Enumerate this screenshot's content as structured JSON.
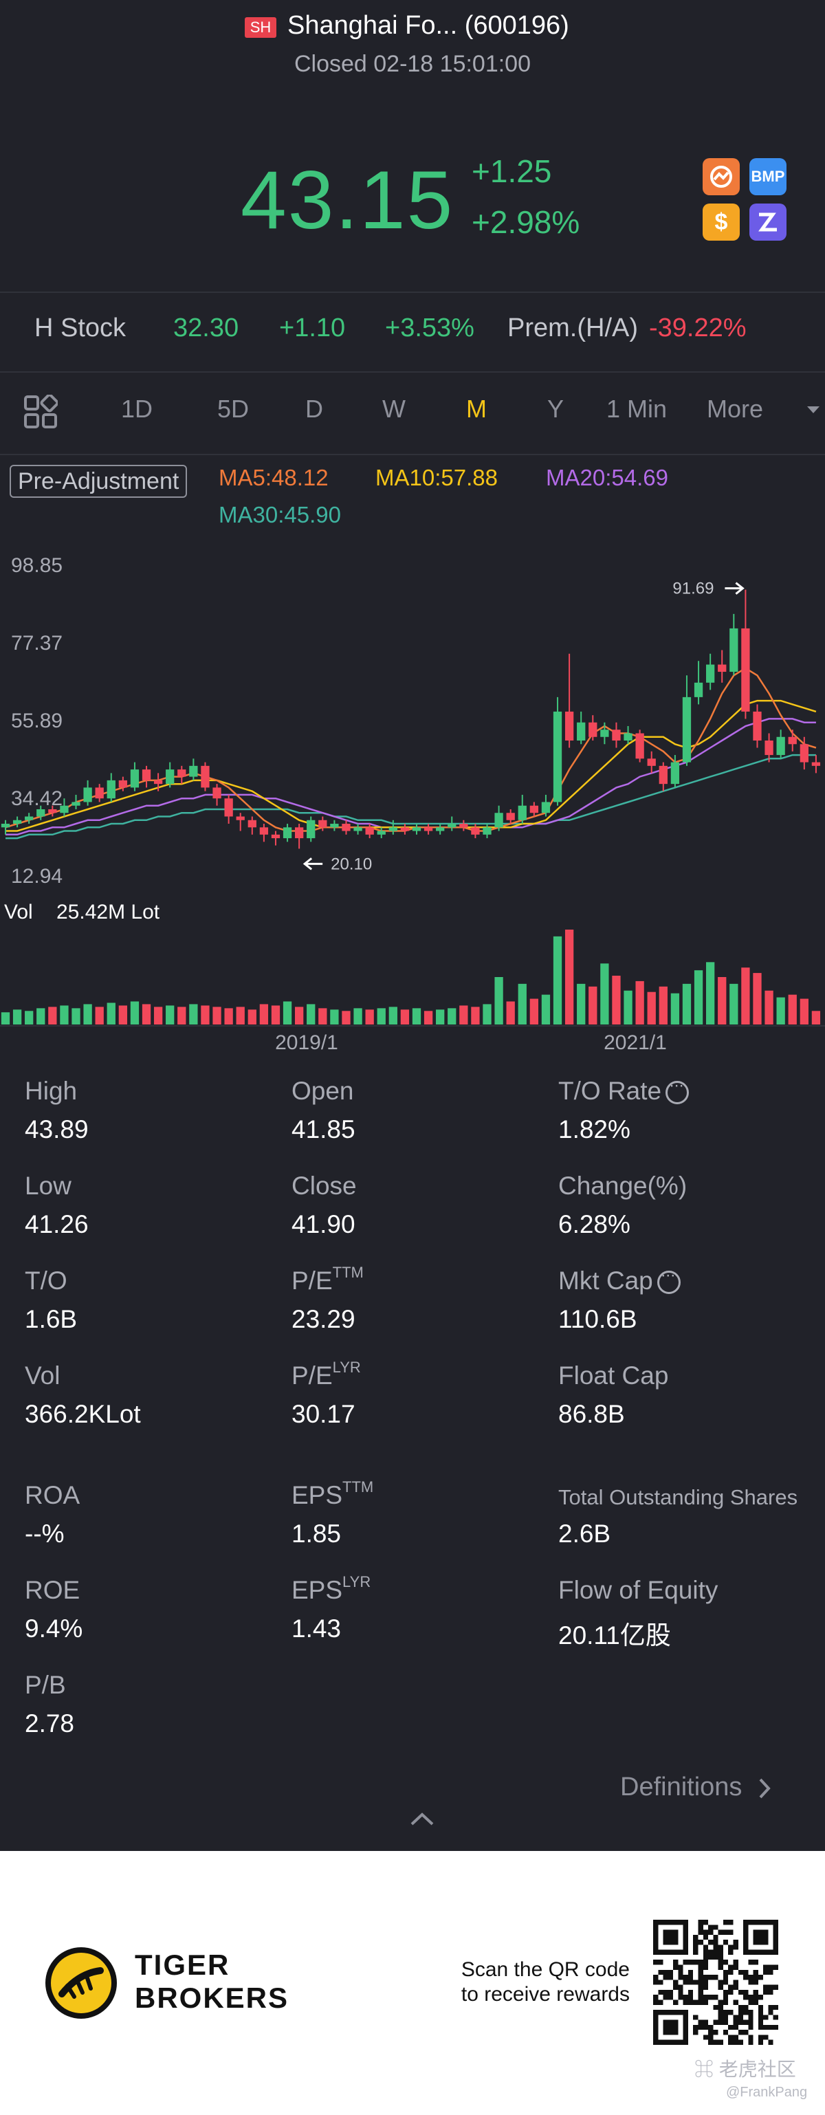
{
  "header": {
    "market_badge": "SH",
    "stock_name": "Shanghai Fo... (600196)",
    "status": "Closed 02-18 15:01:00",
    "price": "43.15",
    "change": "+1.25",
    "change_pct": "+2.98%",
    "app_icons": [
      "a-share-icon",
      "bmp-icon",
      "dollar-icon",
      "zz-icon"
    ],
    "bmp_label": "BMP",
    "dollar_label": "$"
  },
  "h_stock": {
    "label": "H Stock",
    "price": "32.30",
    "change": "+1.10",
    "change_pct": "+3.53%",
    "prem_label": "Prem.(H/A)",
    "prem_value": "-39.22%"
  },
  "tabs": {
    "items": [
      "1D",
      "5D",
      "D",
      "W",
      "M",
      "Y",
      "1 Min",
      "More"
    ],
    "active": "M"
  },
  "indicators": {
    "adjustment": "Pre-Adjustment",
    "ma5": "MA5:48.12",
    "ma10": "MA10:57.88",
    "ma20": "MA20:54.69",
    "ma30": "MA30:45.90"
  },
  "colors": {
    "up": "#3fc47c",
    "down": "#f2485a",
    "ma5": "#f07a3a",
    "ma10": "#f5c518",
    "ma20": "#b46be8",
    "ma30": "#3fb3a0",
    "active_tab": "#f5c518"
  },
  "chart_data": {
    "type": "candlestick",
    "y_ticks": [
      "98.85",
      "77.37",
      "55.89",
      "34.42",
      "12.94"
    ],
    "x_ticks": [
      "2019/1",
      "2021/1"
    ],
    "max_label": "91.69",
    "min_label": "20.10",
    "volume_label": "Vol",
    "volume_value": "25.42M Lot",
    "ylim": [
      12.94,
      98.85
    ],
    "candles": [
      {
        "o": 26,
        "c": 27,
        "h": 28,
        "l": 24
      },
      {
        "o": 27,
        "c": 28,
        "h": 29,
        "l": 26
      },
      {
        "o": 28,
        "c": 29,
        "h": 30,
        "l": 27
      },
      {
        "o": 29,
        "c": 31,
        "h": 32,
        "l": 28
      },
      {
        "o": 31,
        "c": 30,
        "h": 32,
        "l": 29
      },
      {
        "o": 30,
        "c": 32,
        "h": 34,
        "l": 29
      },
      {
        "o": 32,
        "c": 33,
        "h": 35,
        "l": 31
      },
      {
        "o": 33,
        "c": 37,
        "h": 39,
        "l": 32
      },
      {
        "o": 37,
        "c": 34,
        "h": 38,
        "l": 33
      },
      {
        "o": 34,
        "c": 39,
        "h": 41,
        "l": 33
      },
      {
        "o": 39,
        "c": 37,
        "h": 40,
        "l": 36
      },
      {
        "o": 37,
        "c": 42,
        "h": 44,
        "l": 36
      },
      {
        "o": 42,
        "c": 39,
        "h": 43,
        "l": 37
      },
      {
        "o": 39,
        "c": 38,
        "h": 41,
        "l": 36
      },
      {
        "o": 38,
        "c": 42,
        "h": 44,
        "l": 37
      },
      {
        "o": 42,
        "c": 40,
        "h": 43,
        "l": 38
      },
      {
        "o": 40,
        "c": 43,
        "h": 45,
        "l": 39
      },
      {
        "o": 43,
        "c": 37,
        "h": 44,
        "l": 36
      },
      {
        "o": 37,
        "c": 34,
        "h": 38,
        "l": 32
      },
      {
        "o": 34,
        "c": 29,
        "h": 35,
        "l": 27
      },
      {
        "o": 29,
        "c": 28,
        "h": 30,
        "l": 25
      },
      {
        "o": 28,
        "c": 26,
        "h": 29,
        "l": 24
      },
      {
        "o": 26,
        "c": 24,
        "h": 27,
        "l": 22
      },
      {
        "o": 24,
        "c": 23,
        "h": 25,
        "l": 21
      },
      {
        "o": 23,
        "c": 26,
        "h": 27,
        "l": 22
      },
      {
        "o": 26,
        "c": 23,
        "h": 27,
        "l": 20.1
      },
      {
        "o": 23,
        "c": 28,
        "h": 29,
        "l": 22
      },
      {
        "o": 28,
        "c": 26,
        "h": 29,
        "l": 25
      },
      {
        "o": 26,
        "c": 27,
        "h": 28,
        "l": 25
      },
      {
        "o": 27,
        "c": 25,
        "h": 28,
        "l": 24
      },
      {
        "o": 25,
        "c": 26,
        "h": 27,
        "l": 24
      },
      {
        "o": 26,
        "c": 24,
        "h": 27,
        "l": 23
      },
      {
        "o": 24,
        "c": 25,
        "h": 26,
        "l": 23
      },
      {
        "o": 25,
        "c": 26,
        "h": 28,
        "l": 24
      },
      {
        "o": 26,
        "c": 25,
        "h": 27,
        "l": 24
      },
      {
        "o": 25,
        "c": 26,
        "h": 27,
        "l": 24
      },
      {
        "o": 26,
        "c": 25,
        "h": 27,
        "l": 24
      },
      {
        "o": 25,
        "c": 26,
        "h": 27,
        "l": 24
      },
      {
        "o": 26,
        "c": 27,
        "h": 29,
        "l": 25
      },
      {
        "o": 27,
        "c": 26,
        "h": 28,
        "l": 25
      },
      {
        "o": 26,
        "c": 24,
        "h": 27,
        "l": 23
      },
      {
        "o": 24,
        "c": 26,
        "h": 27,
        "l": 23
      },
      {
        "o": 26,
        "c": 30,
        "h": 32,
        "l": 25
      },
      {
        "o": 30,
        "c": 28,
        "h": 31,
        "l": 27
      },
      {
        "o": 28,
        "c": 32,
        "h": 35,
        "l": 27
      },
      {
        "o": 32,
        "c": 30,
        "h": 33,
        "l": 29
      },
      {
        "o": 30,
        "c": 33,
        "h": 35,
        "l": 29
      },
      {
        "o": 33,
        "c": 58,
        "h": 62,
        "l": 32
      },
      {
        "o": 58,
        "c": 50,
        "h": 74,
        "l": 48
      },
      {
        "o": 50,
        "c": 55,
        "h": 58,
        "l": 49
      },
      {
        "o": 55,
        "c": 51,
        "h": 57,
        "l": 50
      },
      {
        "o": 51,
        "c": 53,
        "h": 55,
        "l": 49
      },
      {
        "o": 53,
        "c": 50,
        "h": 55,
        "l": 48
      },
      {
        "o": 50,
        "c": 52,
        "h": 54,
        "l": 49
      },
      {
        "o": 52,
        "c": 45,
        "h": 53,
        "l": 44
      },
      {
        "o": 45,
        "c": 43,
        "h": 47,
        "l": 41
      },
      {
        "o": 43,
        "c": 38,
        "h": 44,
        "l": 36
      },
      {
        "o": 38,
        "c": 44,
        "h": 46,
        "l": 37
      },
      {
        "o": 44,
        "c": 62,
        "h": 68,
        "l": 43
      },
      {
        "o": 62,
        "c": 66,
        "h": 72,
        "l": 60
      },
      {
        "o": 66,
        "c": 71,
        "h": 74,
        "l": 64
      },
      {
        "o": 71,
        "c": 69,
        "h": 75,
        "l": 66
      },
      {
        "o": 69,
        "c": 81,
        "h": 85,
        "l": 68
      },
      {
        "o": 81,
        "c": 58,
        "h": 91.69,
        "l": 56
      },
      {
        "o": 58,
        "c": 50,
        "h": 60,
        "l": 48
      },
      {
        "o": 50,
        "c": 46,
        "h": 52,
        "l": 44
      },
      {
        "o": 46,
        "c": 51,
        "h": 53,
        "l": 45
      },
      {
        "o": 51,
        "c": 49,
        "h": 53,
        "l": 47
      },
      {
        "o": 49,
        "c": 44,
        "h": 51,
        "l": 42
      },
      {
        "o": 44,
        "c": 43,
        "h": 46,
        "l": 41
      }
    ],
    "ma5": [
      26,
      27,
      28,
      29,
      30,
      31,
      33,
      34,
      35,
      36,
      37,
      38,
      39,
      39,
      40,
      40,
      41,
      40,
      39,
      37,
      34,
      31,
      28,
      26,
      25,
      25,
      25,
      26,
      26,
      26,
      26,
      26,
      25,
      25,
      25,
      26,
      26,
      26,
      26,
      26,
      25,
      25,
      26,
      27,
      28,
      29,
      30,
      36,
      42,
      47,
      52,
      54,
      52,
      52,
      51,
      49,
      47,
      44,
      45,
      50,
      56,
      63,
      68,
      70,
      68,
      63,
      57,
      52,
      49,
      48
    ],
    "ma10": [
      25,
      25,
      26,
      27,
      28,
      29,
      30,
      31,
      32,
      33,
      34,
      35,
      36,
      37,
      38,
      38,
      39,
      39,
      39,
      38,
      37,
      36,
      34,
      32,
      30,
      28,
      27,
      26,
      26,
      26,
      26,
      26,
      26,
      26,
      26,
      26,
      26,
      26,
      26,
      26,
      26,
      26,
      26,
      26,
      27,
      27,
      28,
      31,
      34,
      37,
      40,
      43,
      46,
      49,
      51,
      51,
      51,
      49,
      48,
      49,
      51,
      54,
      57,
      60,
      61,
      61,
      61,
      60,
      59,
      58
    ],
    "ma20": [
      24,
      24,
      25,
      25,
      26,
      26,
      27,
      28,
      28,
      29,
      30,
      31,
      32,
      32,
      33,
      34,
      34,
      35,
      35,
      35,
      35,
      35,
      34,
      34,
      33,
      32,
      31,
      30,
      29,
      28,
      27,
      27,
      26,
      26,
      26,
      26,
      26,
      26,
      26,
      26,
      26,
      26,
      26,
      26,
      26,
      27,
      27,
      28,
      29,
      31,
      33,
      35,
      37,
      38,
      40,
      41,
      42,
      43,
      44,
      46,
      48,
      50,
      52,
      54,
      55,
      56,
      56,
      56,
      55,
      55
    ],
    "ma30": [
      23,
      23,
      24,
      24,
      24,
      25,
      25,
      26,
      26,
      27,
      27,
      28,
      28,
      29,
      29,
      30,
      30,
      31,
      31,
      31,
      31,
      31,
      31,
      31,
      31,
      30,
      30,
      30,
      29,
      29,
      28,
      28,
      28,
      27,
      27,
      27,
      27,
      27,
      27,
      27,
      27,
      27,
      27,
      27,
      27,
      27,
      27,
      28,
      28,
      29,
      30,
      31,
      32,
      33,
      34,
      35,
      36,
      37,
      38,
      39,
      40,
      41,
      42,
      43,
      44,
      45,
      45,
      46,
      46,
      46
    ],
    "volume": [
      18,
      22,
      20,
      24,
      26,
      28,
      24,
      30,
      26,
      32,
      28,
      34,
      30,
      26,
      28,
      26,
      30,
      28,
      26,
      24,
      26,
      22,
      30,
      28,
      34,
      26,
      30,
      24,
      22,
      20,
      24,
      22,
      24,
      26,
      22,
      24,
      20,
      22,
      24,
      28,
      26,
      30,
      70,
      34,
      60,
      38,
      44,
      130,
      140,
      60,
      56,
      90,
      72,
      50,
      64,
      48,
      56,
      46,
      60,
      80,
      92,
      70,
      60,
      84,
      76,
      50,
      40,
      44,
      38,
      20
    ]
  },
  "stats": {
    "high_label": "High",
    "high": "43.89",
    "open_label": "Open",
    "open": "41.85",
    "to_rate_label": "T/O Rate",
    "to_rate": "1.82%",
    "low_label": "Low",
    "low": "41.26",
    "close_label": "Close",
    "close": "41.90",
    "change_label": "Change(%)",
    "change": "6.28%",
    "to_label": "T/O",
    "to": "1.6B",
    "pe_ttm_label": "P/E",
    "pe_ttm_sup": "TTM",
    "pe_ttm": "23.29",
    "mkt_cap_label": "Mkt Cap",
    "mkt_cap": "110.6B",
    "vol_label": "Vol",
    "vol": "366.2KLot",
    "pe_lyr_label": "P/E",
    "pe_lyr_sup": "LYR",
    "pe_lyr": "30.17",
    "float_cap_label": "Float Cap",
    "float_cap": "86.8B",
    "roa_label": "ROA",
    "roa": "--%",
    "eps_ttm_label": "EPS",
    "eps_ttm_sup": "TTM",
    "eps_ttm": "1.85",
    "total_shares_label": "Total Outstanding Shares",
    "total_shares": "2.6B",
    "roe_label": "ROE",
    "roe": "9.4%",
    "eps_lyr_label": "EPS",
    "eps_lyr_sup": "LYR",
    "eps_lyr": "1.43",
    "flow_label": "Flow of Equity",
    "flow": "20.11亿股",
    "pb_label": "P/B",
    "pb": "2.78",
    "definitions": "Definitions"
  },
  "footer": {
    "brand_line1": "TIGER",
    "brand_line2": "BROKERS",
    "scan_line1": "Scan the QR code",
    "scan_line2": "to receive rewards",
    "watermark": "老虎社区",
    "watermark_user": "@FrankPang"
  }
}
